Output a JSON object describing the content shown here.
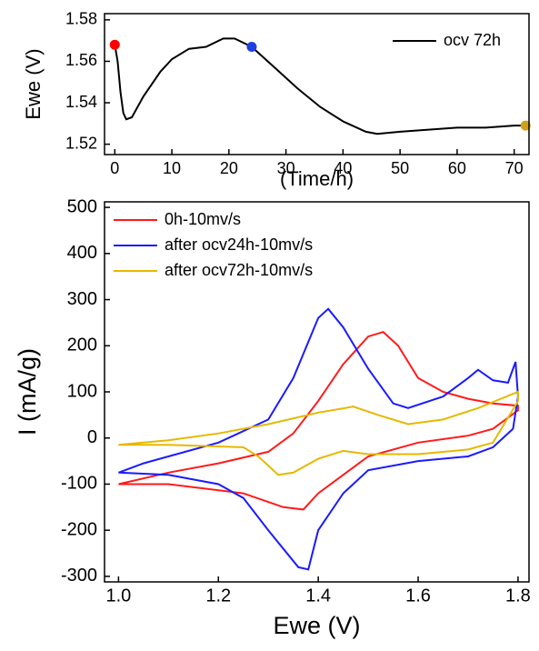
{
  "chart_data": [
    {
      "type": "line",
      "ylabel": "Ewe (V)",
      "xlabel": "(Time/h)",
      "xlim": [
        -1.8,
        72.6
      ],
      "ylim": [
        1.515,
        1.583
      ],
      "xticks": [
        0,
        10,
        20,
        30,
        40,
        50,
        60,
        70
      ],
      "yticks": [
        1.52,
        1.54,
        1.56,
        1.58
      ],
      "legend": "upper right",
      "series": [
        {
          "name": "ocv 72h",
          "color": "#000000",
          "x": [
            0,
            0.5,
            1,
            1.5,
            2,
            3,
            5,
            8,
            10,
            13,
            16,
            19,
            21,
            24,
            28,
            32,
            36,
            40,
            44,
            46,
            50,
            55,
            60,
            65,
            70,
            72
          ],
          "values": [
            1.568,
            1.56,
            1.545,
            1.535,
            1.532,
            1.533,
            1.543,
            1.555,
            1.561,
            1.566,
            1.567,
            1.571,
            1.571,
            1.567,
            1.557,
            1.547,
            1.538,
            1.531,
            1.526,
            1.525,
            1.526,
            1.527,
            1.528,
            1.528,
            1.529,
            1.529
          ]
        }
      ],
      "points": {
        "x": [
          0,
          24,
          72
        ],
        "values": [
          1.568,
          1.567,
          1.529
        ],
        "colors": [
          "#ff0000",
          "#1f3fe0",
          "#d4a017"
        ]
      }
    },
    {
      "type": "line",
      "ylabel": "I (mA/g)",
      "xlabel": "Ewe (V)",
      "xlim": [
        0.972,
        1.822
      ],
      "ylim": [
        -312,
        512
      ],
      "xticks": [
        {
          "value": 1,
          "label": "1.0"
        },
        1.2,
        1.4,
        1.6,
        1.8
      ],
      "yticks": [
        -300,
        -200,
        -100,
        0,
        100,
        200,
        300,
        400,
        500
      ],
      "legend": "upper left",
      "series": [
        {
          "name": "0h-10mv/s",
          "color": "#ff1a1a",
          "x": [
            1.0,
            1.1,
            1.2,
            1.3,
            1.35,
            1.4,
            1.45,
            1.5,
            1.53,
            1.56,
            1.6,
            1.65,
            1.7,
            1.75,
            1.8,
            1.8,
            1.75,
            1.7,
            1.6,
            1.5,
            1.45,
            1.4,
            1.37,
            1.33,
            1.25,
            1.1,
            1.0
          ],
          "values": [
            -100,
            -75,
            -55,
            -30,
            10,
            80,
            160,
            220,
            230,
            200,
            130,
            100,
            85,
            75,
            70,
            60,
            20,
            5,
            -10,
            -40,
            -80,
            -120,
            -155,
            -150,
            -120,
            -100,
            -100
          ]
        },
        {
          "name": "after ocv24h-10mv/s",
          "color": "#1a1aff",
          "x": [
            1.0,
            1.05,
            1.1,
            1.2,
            1.3,
            1.35,
            1.4,
            1.42,
            1.45,
            1.5,
            1.55,
            1.58,
            1.65,
            1.7,
            1.72,
            1.75,
            1.78,
            1.795,
            1.8,
            1.79,
            1.75,
            1.7,
            1.6,
            1.5,
            1.45,
            1.4,
            1.38,
            1.36,
            1.3,
            1.25,
            1.2,
            1.1,
            1.0
          ],
          "values": [
            -75,
            -55,
            -40,
            -10,
            40,
            130,
            260,
            280,
            240,
            150,
            75,
            65,
            90,
            130,
            148,
            125,
            120,
            165,
            90,
            20,
            -20,
            -40,
            -50,
            -70,
            -120,
            -200,
            -285,
            -280,
            -200,
            -130,
            -100,
            -80,
            -75
          ]
        },
        {
          "name": "after ocv72h-10mv/s",
          "color": "#e6b800",
          "x": [
            1.0,
            1.1,
            1.2,
            1.3,
            1.4,
            1.47,
            1.52,
            1.58,
            1.65,
            1.72,
            1.8,
            1.8,
            1.75,
            1.7,
            1.6,
            1.5,
            1.45,
            1.4,
            1.35,
            1.32,
            1.28,
            1.25,
            1.1,
            1.0
          ],
          "values": [
            -15,
            -5,
            10,
            30,
            55,
            68,
            50,
            30,
            40,
            65,
            100,
            80,
            -10,
            -25,
            -35,
            -35,
            -28,
            -45,
            -75,
            -80,
            -40,
            -20,
            -15,
            -15
          ]
        }
      ]
    }
  ]
}
